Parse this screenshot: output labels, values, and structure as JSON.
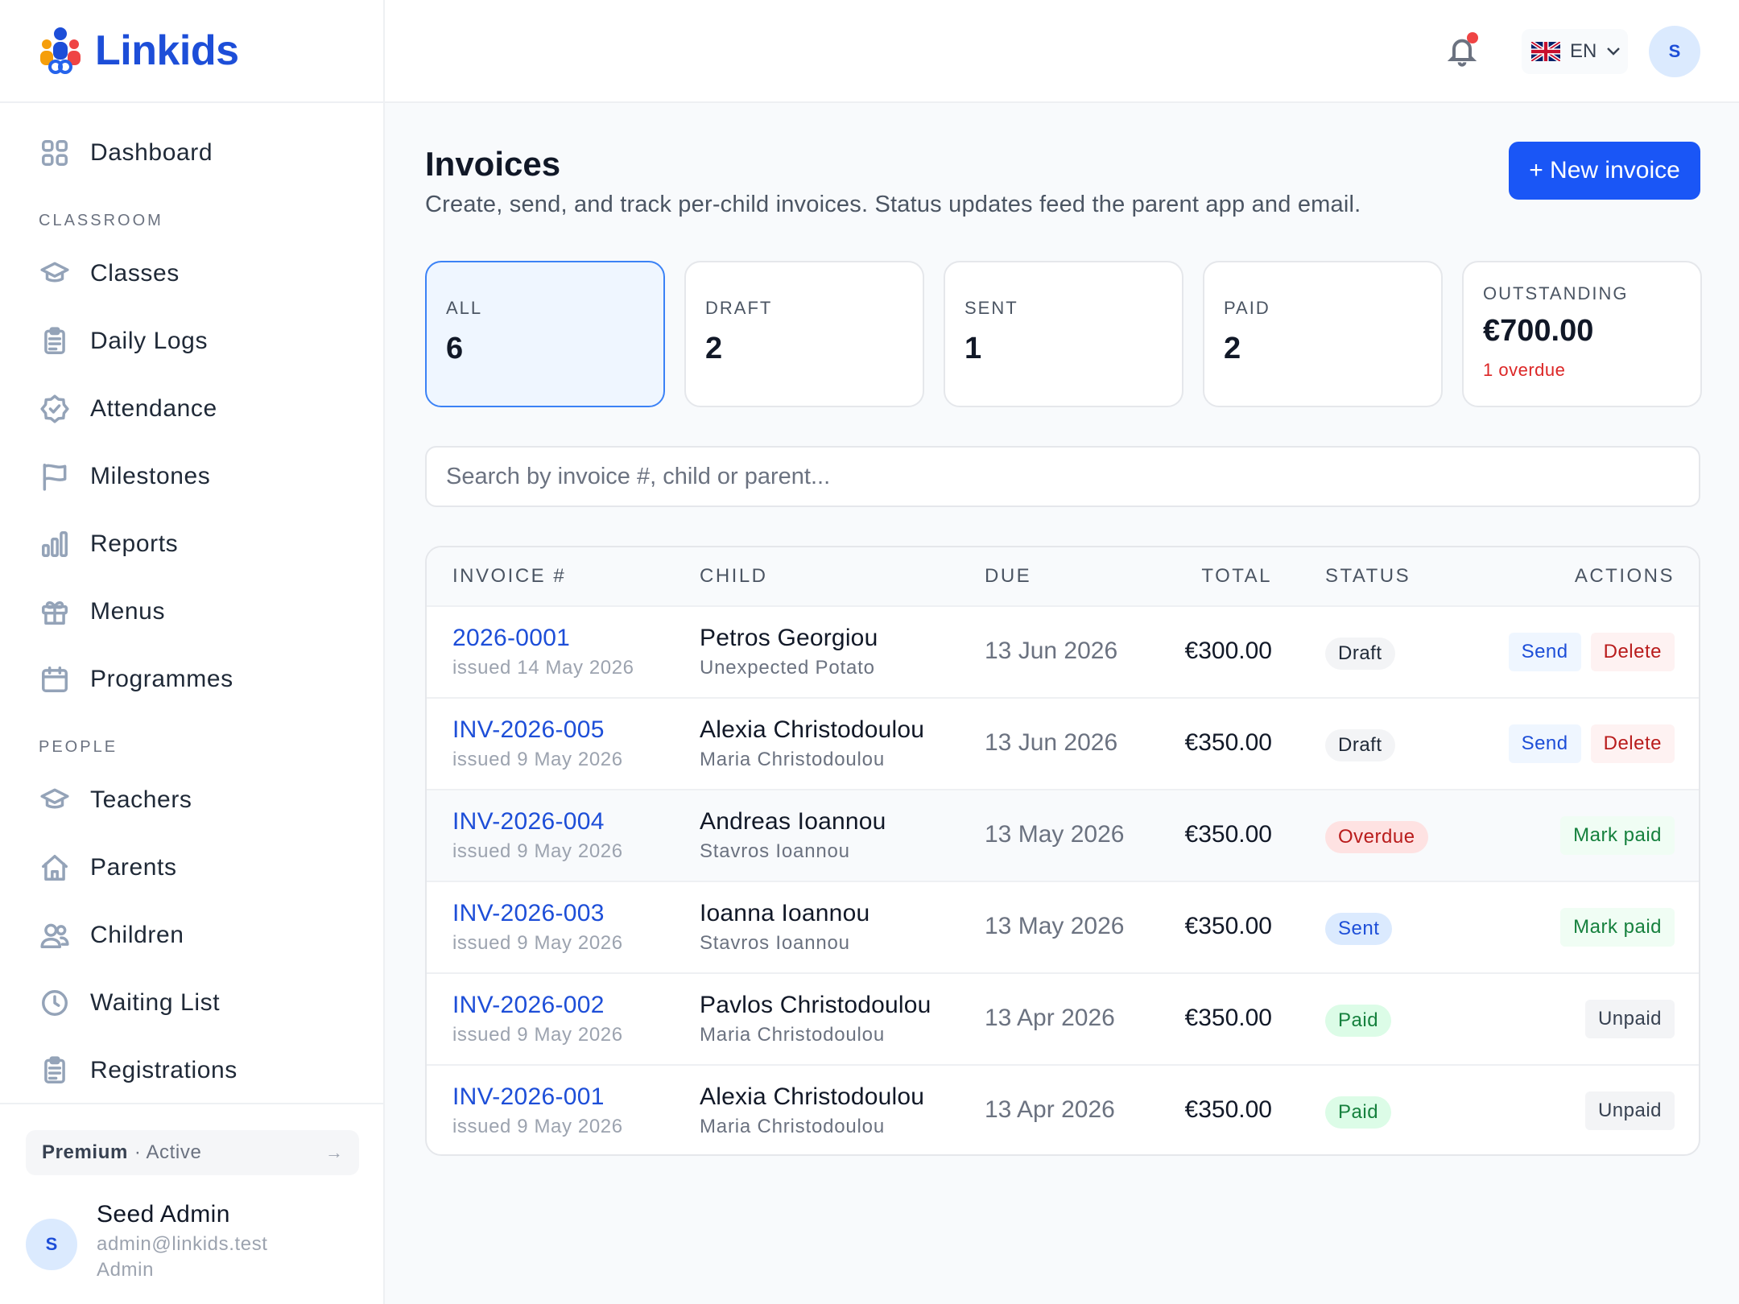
{
  "app": {
    "name": "Linkids"
  },
  "nav": {
    "dashboard": "Dashboard",
    "sections": {
      "classroom": "CLASSROOM",
      "people": "PEOPLE"
    },
    "classroom_items": [
      {
        "label": "Classes",
        "icon": "graduation-cap-icon"
      },
      {
        "label": "Daily Logs",
        "icon": "clipboard-icon"
      },
      {
        "label": "Attendance",
        "icon": "check-badge-icon"
      },
      {
        "label": "Milestones",
        "icon": "flag-icon"
      },
      {
        "label": "Reports",
        "icon": "bar-chart-icon"
      },
      {
        "label": "Menus",
        "icon": "gift-icon"
      },
      {
        "label": "Programmes",
        "icon": "calendar-icon"
      }
    ],
    "people_items": [
      {
        "label": "Teachers",
        "icon": "graduation-cap-icon"
      },
      {
        "label": "Parents",
        "icon": "home-icon"
      },
      {
        "label": "Children",
        "icon": "users-icon"
      },
      {
        "label": "Waiting List",
        "icon": "clock-icon"
      },
      {
        "label": "Registrations",
        "icon": "clipboard-icon"
      }
    ]
  },
  "plan": {
    "name": "Premium",
    "status": "· Active",
    "arrow": "→"
  },
  "user": {
    "initial": "S",
    "name": "Seed Admin",
    "email": "admin@linkids.test",
    "role": "Admin"
  },
  "topbar": {
    "lang": "EN",
    "avatar_initial": "S",
    "has_notification": true
  },
  "page": {
    "title": "Invoices",
    "subtitle": "Create, send, and track per-child invoices. Status updates feed the parent app and email.",
    "new_button": "+ New invoice"
  },
  "stats": {
    "all": {
      "label": "ALL",
      "value": "6"
    },
    "draft": {
      "label": "DRAFT",
      "value": "2"
    },
    "sent": {
      "label": "SENT",
      "value": "1"
    },
    "paid": {
      "label": "PAID",
      "value": "2"
    },
    "outstanding": {
      "label": "OUTSTANDING",
      "value": "€700.00",
      "sub": "1 overdue"
    }
  },
  "search": {
    "placeholder": "Search by invoice #, child or parent..."
  },
  "table": {
    "headers": {
      "invoice": "INVOICE #",
      "child": "CHILD",
      "due": "DUE",
      "total": "TOTAL",
      "status": "STATUS",
      "actions": "ACTIONS"
    },
    "rows": [
      {
        "number": "2026-0001",
        "issued": "issued 14 May 2026",
        "child": "Petros Georgiou",
        "parent": "Unexpected Potato",
        "due": "13 Jun 2026",
        "total": "€300.00",
        "status": "Draft",
        "status_kind": "draft",
        "actions": [
          "Send",
          "Delete"
        ]
      },
      {
        "number": "INV-2026-005",
        "issued": "issued 9 May 2026",
        "child": "Alexia Christodoulou",
        "parent": "Maria Christodoulou",
        "due": "13 Jun 2026",
        "total": "€350.00",
        "status": "Draft",
        "status_kind": "draft",
        "actions": [
          "Send",
          "Delete"
        ]
      },
      {
        "number": "INV-2026-004",
        "issued": "issued 9 May 2026",
        "child": "Andreas Ioannou",
        "parent": "Stavros Ioannou",
        "due": "13 May 2026",
        "total": "€350.00",
        "status": "Overdue",
        "status_kind": "overdue",
        "actions": [
          "Mark paid"
        ]
      },
      {
        "number": "INV-2026-003",
        "issued": "issued 9 May 2026",
        "child": "Ioanna Ioannou",
        "parent": "Stavros Ioannou",
        "due": "13 May 2026",
        "total": "€350.00",
        "status": "Sent",
        "status_kind": "sent",
        "actions": [
          "Mark paid"
        ]
      },
      {
        "number": "INV-2026-002",
        "issued": "issued 9 May 2026",
        "child": "Pavlos Christodoulou",
        "parent": "Maria Christodoulou",
        "due": "13 Apr 2026",
        "total": "€350.00",
        "status": "Paid",
        "status_kind": "paid",
        "actions": [
          "Unpaid"
        ]
      },
      {
        "number": "INV-2026-001",
        "issued": "issued 9 May 2026",
        "child": "Alexia Christodoulou",
        "parent": "Maria Christodoulou",
        "due": "13 Apr 2026",
        "total": "€350.00",
        "status": "Paid",
        "status_kind": "paid",
        "actions": [
          "Unpaid"
        ]
      }
    ]
  },
  "colors": {
    "accent": "#1a56f6",
    "link": "#1d4ed8",
    "danger": "#dc2626",
    "success": "#15803d"
  }
}
